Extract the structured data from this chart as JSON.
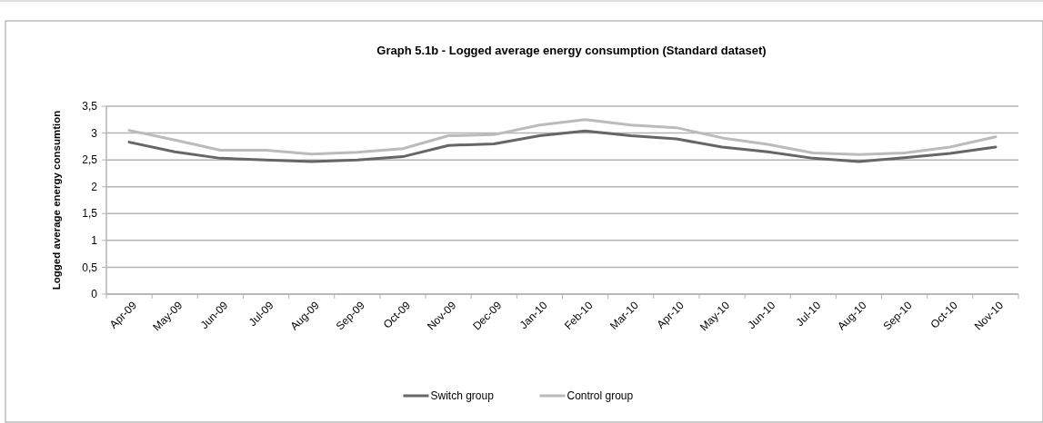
{
  "chart_data": {
    "type": "line",
    "title": "Graph 5.1b - Logged average energy consumption (Standard dataset)",
    "ylabel": "Logged average energy consumtion",
    "categories": [
      "Apr-09",
      "May-09",
      "Jun-09",
      "Jul-09",
      "Aug-09",
      "Sep-09",
      "Oct-09",
      "Nov-09",
      "Dec-09",
      "Jan-10",
      "Feb-10",
      "Mar-10",
      "Apr-10",
      "May-10",
      "Jun-10",
      "Jul-10",
      "Aug-10",
      "Sep-10",
      "Oct-10",
      "Nov-10"
    ],
    "series": [
      {
        "name": "Switch group",
        "color": "#666666",
        "values": [
          2.83,
          2.65,
          2.53,
          2.5,
          2.47,
          2.5,
          2.56,
          2.77,
          2.8,
          2.95,
          3.04,
          2.95,
          2.89,
          2.74,
          2.65,
          2.53,
          2.47,
          2.54,
          2.62,
          2.74
        ]
      },
      {
        "name": "Control group",
        "color": "#bbbbbb",
        "values": [
          3.05,
          2.87,
          2.68,
          2.68,
          2.61,
          2.64,
          2.71,
          2.95,
          2.97,
          3.15,
          3.25,
          3.15,
          3.1,
          2.91,
          2.79,
          2.63,
          2.6,
          2.63,
          2.74,
          2.93
        ]
      }
    ],
    "ylim": [
      0,
      3.5
    ],
    "yticks": [
      0,
      {
        "value": 0.5,
        "label": "0,5"
      },
      1,
      {
        "value": 1.5,
        "label": "1,5"
      },
      2,
      {
        "value": 2.5,
        "label": "2,5"
      },
      3,
      {
        "value": 3.5,
        "label": "3,5"
      }
    ],
    "grid": "y",
    "legend": "bottom",
    "marker": "none",
    "line_style": "solid"
  }
}
